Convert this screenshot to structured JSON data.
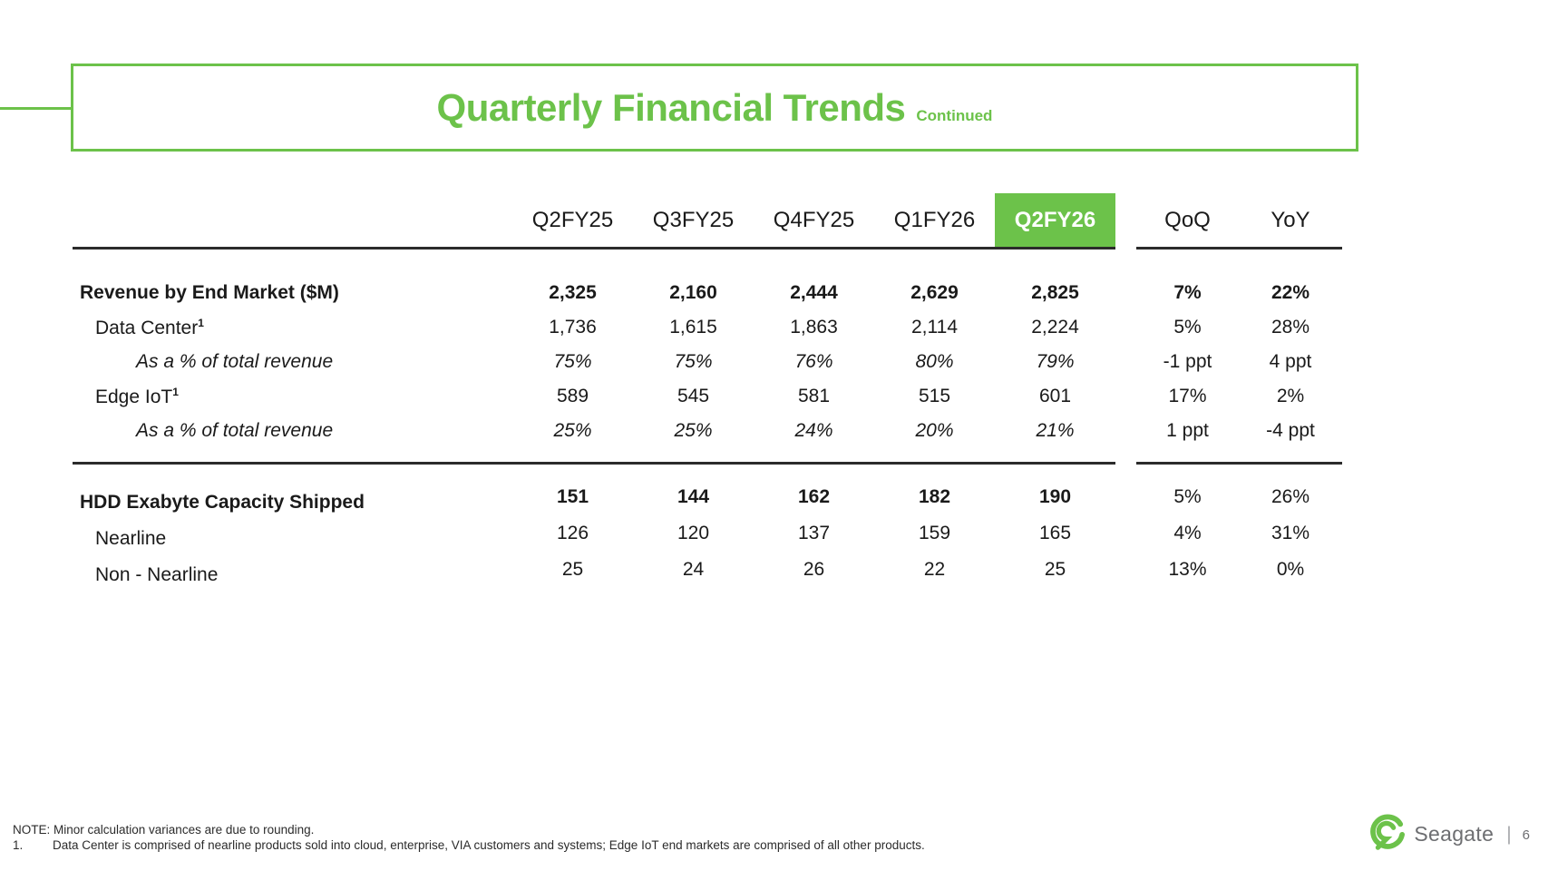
{
  "title": {
    "main": "Quarterly Financial Trends",
    "suffix": "Continued"
  },
  "header": {
    "quarters": [
      "Q2FY25",
      "Q3FY25",
      "Q4FY25",
      "Q1FY26",
      "Q2FY26"
    ],
    "highlight_index": 4,
    "qoq": "QoQ",
    "yoy": "YoY"
  },
  "table": {
    "groups": [
      {
        "rows": [
          {
            "label": "Revenue by End Market ($M)",
            "sup": "",
            "indent": 0,
            "labelStyle": "bold",
            "valueStyle": "bold",
            "changeStyle": "bold",
            "values": [
              "2,325",
              "2,160",
              "2,444",
              "2,629",
              "2,825"
            ],
            "qoq": "7%",
            "yoy": "22%"
          },
          {
            "label": "Data Center",
            "sup": "1",
            "indent": 1,
            "labelStyle": "normal",
            "valueStyle": "normal",
            "changeStyle": "normal",
            "values": [
              "1,736",
              "1,615",
              "1,863",
              "2,114",
              "2,224"
            ],
            "qoq": "5%",
            "yoy": "28%"
          },
          {
            "label": "As a % of total revenue",
            "sup": "",
            "indent": 2,
            "labelStyle": "italic",
            "valueStyle": "italic",
            "changeStyle": "normal",
            "values": [
              "75%",
              "75%",
              "76%",
              "80%",
              "79%"
            ],
            "qoq": "-1 ppt",
            "yoy": "4 ppt"
          },
          {
            "label": "Edge IoT",
            "sup": "1",
            "indent": 1,
            "labelStyle": "normal",
            "valueStyle": "normal",
            "changeStyle": "normal",
            "values": [
              "589",
              "545",
              "581",
              "515",
              "601"
            ],
            "qoq": "17%",
            "yoy": "2%"
          },
          {
            "label": "As a % of total revenue",
            "sup": "",
            "indent": 2,
            "labelStyle": "italic",
            "valueStyle": "italic",
            "changeStyle": "normal",
            "values": [
              "25%",
              "25%",
              "24%",
              "20%",
              "21%"
            ],
            "qoq": "1 ppt",
            "yoy": "-4 ppt"
          }
        ]
      },
      {
        "rows": [
          {
            "label": "HDD Exabyte Capacity Shipped",
            "sup": "",
            "indent": 0,
            "labelStyle": "bold",
            "valueStyle": "bold",
            "changeStyle": "normal",
            "values": [
              "151",
              "144",
              "162",
              "182",
              "190"
            ],
            "qoq": "5%",
            "yoy": "26%"
          },
          {
            "label": "Nearline",
            "sup": "",
            "indent": 1,
            "labelStyle": "normal",
            "valueStyle": "normal",
            "changeStyle": "normal",
            "values": [
              "126",
              "120",
              "137",
              "159",
              "165"
            ],
            "qoq": "4%",
            "yoy": "31%"
          },
          {
            "label": "Non - Nearline",
            "sup": "",
            "indent": 1,
            "labelStyle": "normal",
            "valueStyle": "normal",
            "changeStyle": "normal",
            "values": [
              "25",
              "24",
              "26",
              "22",
              "25"
            ],
            "qoq": "13%",
            "yoy": "0%"
          }
        ]
      }
    ]
  },
  "footer": {
    "note": "NOTE: Minor calculation variances are due to rounding.",
    "footnote_marker": "1.",
    "footnote": "Data Center is comprised of nearline products sold into cloud, enterprise, VIA customers and systems; Edge IoT end markets are comprised of all other products.",
    "brand": "Seagate",
    "separator": "|",
    "page": "6"
  },
  "colors": {
    "green": "#6cc24a",
    "brand_gray": "#6d6e71",
    "line": "#2b2b2b"
  }
}
